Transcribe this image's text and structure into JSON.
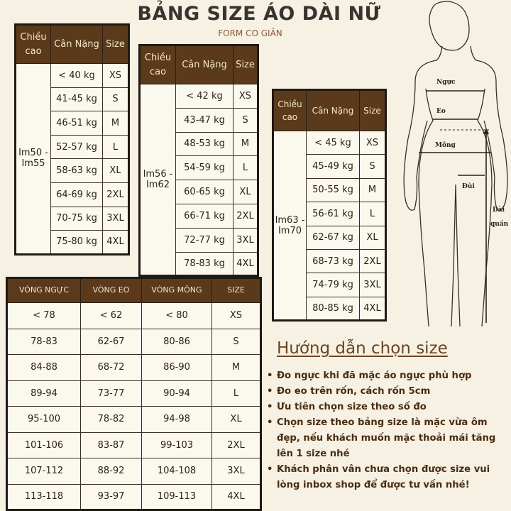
{
  "title": "BẢNG SIZE ÁO DÀI NỮ",
  "subtitle": "FORM CO GIÃN",
  "colors": {
    "header": "#5b3a1c",
    "background": "#f6f1e2",
    "accent": "#6b4322"
  },
  "height_tables": [
    {
      "headers": {
        "height": "Chiều cao",
        "weight": "Cân Nặng",
        "size": "Size"
      },
      "height": "Im50 - Im55",
      "rows": [
        {
          "weight": "< 40 kg",
          "size": "XS"
        },
        {
          "weight": "41-45 kg",
          "size": "S"
        },
        {
          "weight": "46-51 kg",
          "size": "M"
        },
        {
          "weight": "52-57 kg",
          "size": "L"
        },
        {
          "weight": "58-63 kg",
          "size": "XL"
        },
        {
          "weight": "64-69 kg",
          "size": "2XL"
        },
        {
          "weight": "70-75 kg",
          "size": "3XL"
        },
        {
          "weight": "75-80 kg",
          "size": "4XL"
        }
      ]
    },
    {
      "headers": {
        "height": "Chiều cao",
        "weight": "Cân Nặng",
        "size": "Size"
      },
      "height": "Im56 - Im62",
      "rows": [
        {
          "weight": "< 42 kg",
          "size": "XS"
        },
        {
          "weight": "43-47 kg",
          "size": "S"
        },
        {
          "weight": "48-53 kg",
          "size": "M"
        },
        {
          "weight": "54-59 kg",
          "size": "L"
        },
        {
          "weight": "60-65 kg",
          "size": "XL"
        },
        {
          "weight": "66-71 kg",
          "size": "2XL"
        },
        {
          "weight": "72-77 kg",
          "size": "3XL"
        },
        {
          "weight": "78-83 kg",
          "size": "4XL"
        }
      ]
    },
    {
      "headers": {
        "height": "Chiều cao",
        "weight": "Cân Nặng",
        "size": "Size"
      },
      "height": "Im63 - Im70",
      "rows": [
        {
          "weight": "< 45 kg",
          "size": "XS"
        },
        {
          "weight": "45-49 kg",
          "size": "S"
        },
        {
          "weight": "50-55 kg",
          "size": "M"
        },
        {
          "weight": "56-61 kg",
          "size": "L"
        },
        {
          "weight": "62-67 kg",
          "size": "XL"
        },
        {
          "weight": "68-73 kg",
          "size": "2XL"
        },
        {
          "weight": "74-79 kg",
          "size": "3XL"
        },
        {
          "weight": "80-85 kg",
          "size": "4XL"
        }
      ]
    }
  ],
  "measure_table": {
    "headers": [
      "VÒNG NGỰC",
      "VÒNG EO",
      "VÒNG MÔNG",
      "SIZE"
    ],
    "rows": [
      [
        "< 78",
        "< 62",
        "< 80",
        "XS"
      ],
      [
        "78-83",
        "62-67",
        "80-86",
        "S"
      ],
      [
        "84-88",
        "68-72",
        "86-90",
        "M"
      ],
      [
        "89-94",
        "73-77",
        "90-94",
        "L"
      ],
      [
        "95-100",
        "78-82",
        "94-98",
        "XL"
      ],
      [
        "101-106",
        "83-87",
        "99-103",
        "2XL"
      ],
      [
        "107-112",
        "88-92",
        "104-108",
        "3XL"
      ],
      [
        "113-118",
        "93-97",
        "109-113",
        "4XL"
      ]
    ]
  },
  "guide": {
    "title": "Hướng dẫn chọn size",
    "items": [
      "Đo ngực khi đã mặc áo ngực phù hợp",
      "Đo eo trên rốn, cách rốn 5cm",
      "Ưu tiên chọn size theo số đo",
      "Chọn size theo bảng size là mặc vừa ôm đẹp, nếu khách muốn mặc thoải mái tăng lên 1 size nhé",
      "Khách phân vân chưa chọn được size vui lòng inbox shop để được tư vấn nhé!"
    ]
  },
  "figure": {
    "chest": "Ngực",
    "waist": "Eo",
    "hip": "Mông",
    "thigh": "Đùi",
    "pant_length_1": "Dài",
    "pant_length_2": "quần"
  }
}
